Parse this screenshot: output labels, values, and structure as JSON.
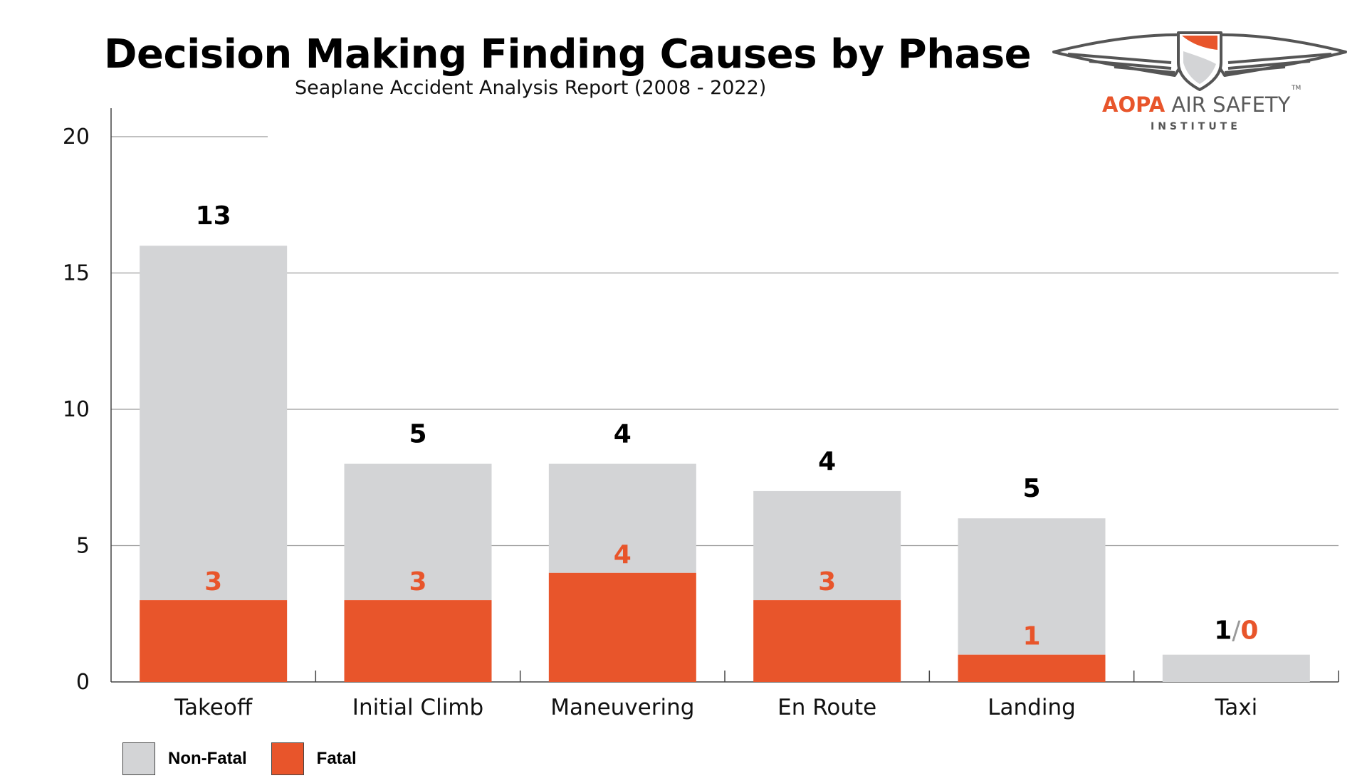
{
  "header": {
    "title": "Decision Making Finding Causes by Phase",
    "subtitle": "Seaplane Accident Analysis Report (2008 - 2022)"
  },
  "logo": {
    "brand": "AOPA",
    "name": "AIR SAFETY",
    "sub": "INSTITUTE",
    "tm": "TM"
  },
  "chart_data": {
    "type": "bar",
    "stacked": true,
    "categories": [
      "Takeoff",
      "Initial Climb",
      "Maneuvering",
      "En Route",
      "Landing",
      "Taxi"
    ],
    "series": [
      {
        "name": "Fatal",
        "values": [
          3,
          3,
          4,
          3,
          1,
          0
        ],
        "color": "#e8552b"
      },
      {
        "name": "Non-Fatal",
        "values": [
          13,
          5,
          4,
          4,
          5,
          1
        ],
        "color": "#d3d4d6"
      }
    ],
    "top_labels": [
      "13",
      "5",
      "4",
      "4",
      "5",
      "1"
    ],
    "fatal_labels": [
      "3",
      "3",
      "4",
      "3",
      "1",
      "0"
    ],
    "ylim": [
      0,
      20
    ],
    "yticks": [
      0,
      5,
      10,
      15,
      20
    ],
    "grid": true,
    "legend_position": "bottom-left",
    "legend": [
      {
        "name": "Non-Fatal",
        "color": "#d3d4d6"
      },
      {
        "name": "Fatal",
        "color": "#e8552b"
      }
    ]
  }
}
